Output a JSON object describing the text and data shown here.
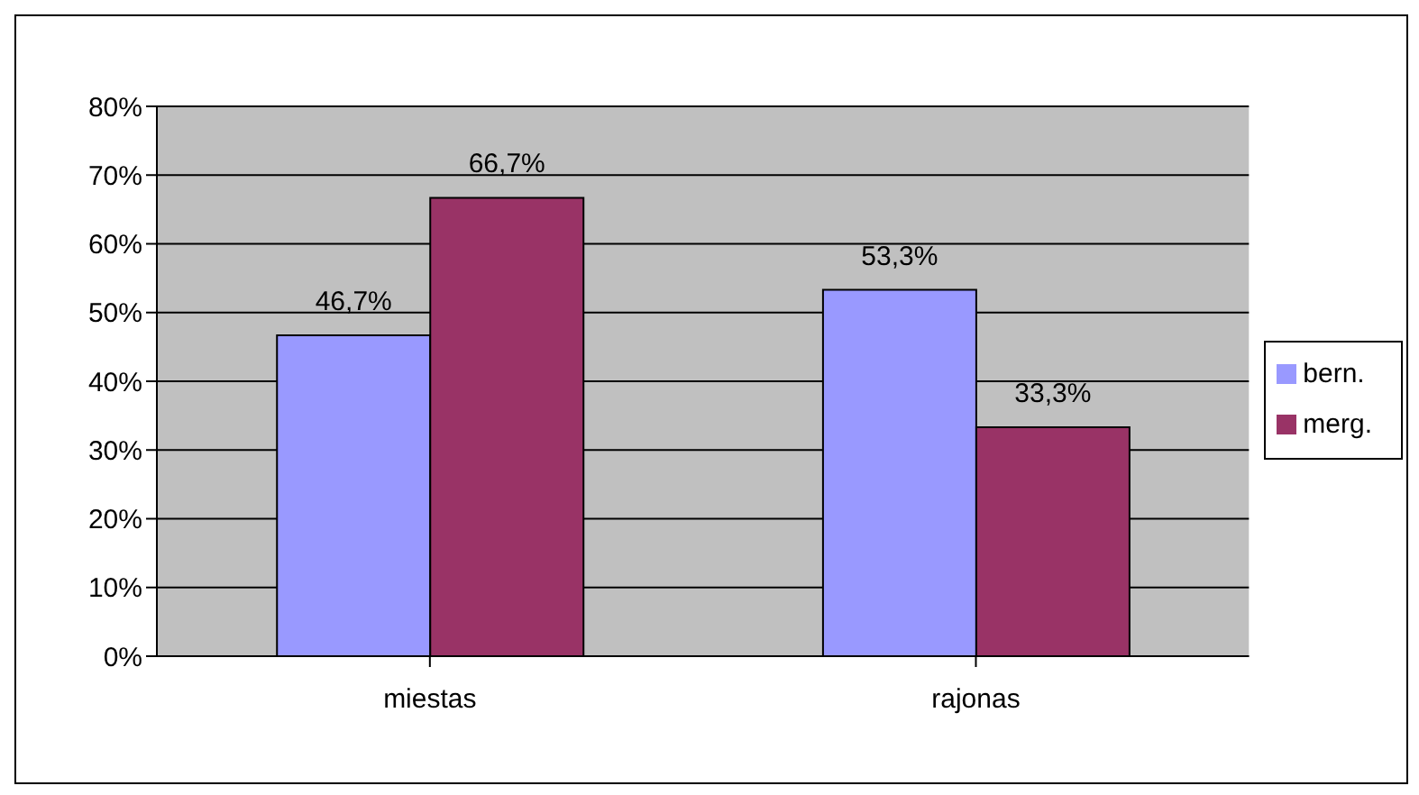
{
  "chart_data": {
    "type": "bar",
    "categories": [
      "miestas",
      "rajonas"
    ],
    "series": [
      {
        "name": "bern.",
        "color": "#9999ff",
        "values": [
          46.7,
          53.3
        ],
        "value_labels": [
          "46,7%",
          "53,3%"
        ]
      },
      {
        "name": "merg.",
        "color": "#993366",
        "values": [
          66.7,
          33.3
        ],
        "value_labels": [
          "66,7%",
          "33,3%"
        ]
      }
    ],
    "ylim": [
      0,
      80
    ],
    "yticks": [
      {
        "value": 0,
        "label": "0%"
      },
      {
        "value": 10,
        "label": "10%"
      },
      {
        "value": 20,
        "label": "20%"
      },
      {
        "value": 30,
        "label": "30%"
      },
      {
        "value": 40,
        "label": "40%"
      },
      {
        "value": 50,
        "label": "50%"
      },
      {
        "value": 60,
        "label": "60%"
      },
      {
        "value": 70,
        "label": "70%"
      },
      {
        "value": 80,
        "label": "80%"
      }
    ],
    "grid": "y",
    "legend": "right"
  }
}
